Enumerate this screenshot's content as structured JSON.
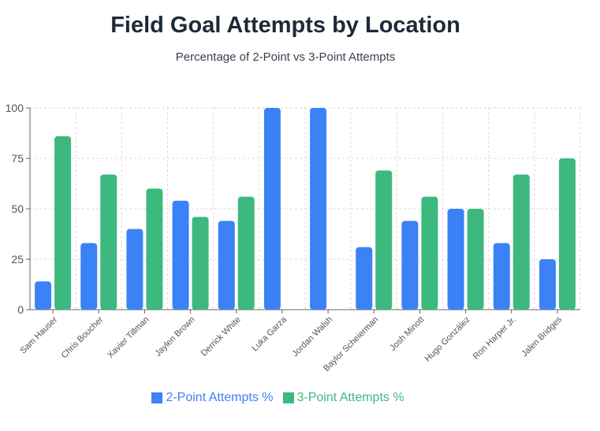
{
  "chart_data": {
    "type": "bar",
    "title": "Field Goal Attempts by Location",
    "subtitle": "Percentage of 2-Point vs 3-Point Attempts",
    "categories": [
      "Sam Hauser",
      "Chris Boucher",
      "Xavier Tillman",
      "Jaylen Brown",
      "Derrick White",
      "Luka Garza",
      "Jordan Walsh",
      "Baylor Scheierman",
      "Josh Minott",
      "Hugo González",
      "Ron Harper Jr.",
      "Jalen Bridges"
    ],
    "series": [
      {
        "name": "2-Point Attempts %",
        "color": "#3b82f6",
        "values": [
          14,
          33,
          40,
          54,
          44,
          100,
          100,
          31,
          44,
          50,
          33,
          25
        ]
      },
      {
        "name": "3-Point Attempts %",
        "color": "#3db87e",
        "values": [
          86,
          67,
          60,
          46,
          56,
          0,
          0,
          69,
          56,
          50,
          67,
          75
        ]
      }
    ],
    "ylim": [
      0,
      100
    ],
    "yticks": [
      0,
      25,
      50,
      75,
      100
    ],
    "grid": true,
    "legend": "bottom"
  }
}
